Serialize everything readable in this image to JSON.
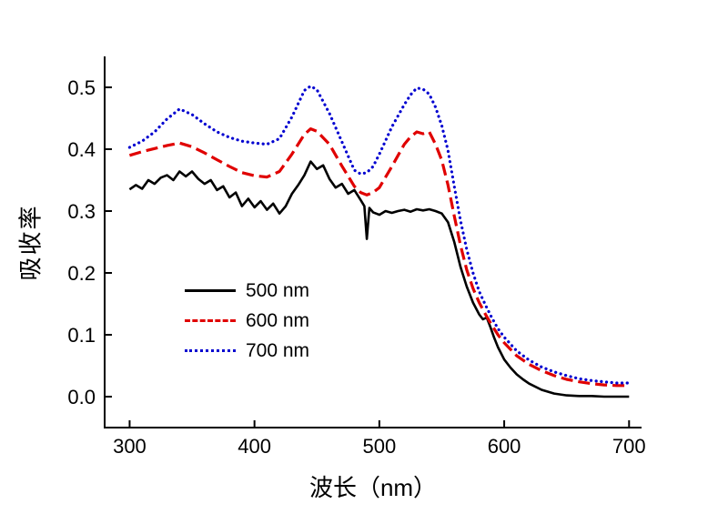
{
  "chart_data": {
    "type": "line",
    "title": "",
    "xlabel": "波长（nm）",
    "ylabel": "吸收率",
    "xlim": [
      280,
      710
    ],
    "ylim": [
      -0.05,
      0.55
    ],
    "grid": false,
    "legend_position": "inside lower-left",
    "axis_color": "#000000",
    "xticks": [
      {
        "value": 300,
        "label": "300"
      },
      {
        "value": 400,
        "label": "400"
      },
      {
        "value": 500,
        "label": "500"
      },
      {
        "value": 600,
        "label": "600"
      },
      {
        "value": 700,
        "label": "700"
      }
    ],
    "yticks": [
      {
        "value": 0.0,
        "label": "0.0"
      },
      {
        "value": 0.1,
        "label": "0.1"
      },
      {
        "value": 0.2,
        "label": "0.2"
      },
      {
        "value": 0.3,
        "label": "0.3"
      },
      {
        "value": 0.4,
        "label": "0.4"
      },
      {
        "value": 0.5,
        "label": "0.5"
      }
    ],
    "series": [
      {
        "name": "500 nm",
        "color": "#000000",
        "style": "solid",
        "x": [
          300,
          305,
          310,
          315,
          320,
          325,
          330,
          335,
          340,
          345,
          350,
          355,
          360,
          365,
          370,
          375,
          380,
          385,
          390,
          395,
          400,
          405,
          410,
          415,
          420,
          425,
          430,
          435,
          440,
          445,
          450,
          455,
          460,
          465,
          470,
          475,
          480,
          485,
          488,
          490,
          492,
          495,
          500,
          505,
          510,
          515,
          520,
          525,
          530,
          535,
          540,
          545,
          550,
          555,
          560,
          565,
          570,
          575,
          580,
          583,
          586,
          589,
          592,
          595,
          600,
          605,
          610,
          615,
          620,
          630,
          640,
          650,
          660,
          670,
          680,
          690,
          700
        ],
        "y": [
          0.335,
          0.342,
          0.336,
          0.35,
          0.344,
          0.354,
          0.358,
          0.35,
          0.364,
          0.356,
          0.364,
          0.352,
          0.344,
          0.35,
          0.334,
          0.34,
          0.322,
          0.33,
          0.308,
          0.32,
          0.306,
          0.316,
          0.302,
          0.312,
          0.296,
          0.308,
          0.328,
          0.342,
          0.358,
          0.38,
          0.368,
          0.374,
          0.352,
          0.338,
          0.344,
          0.328,
          0.334,
          0.318,
          0.308,
          0.255,
          0.305,
          0.298,
          0.294,
          0.3,
          0.297,
          0.3,
          0.302,
          0.299,
          0.303,
          0.301,
          0.303,
          0.3,
          0.296,
          0.282,
          0.25,
          0.21,
          0.178,
          0.152,
          0.133,
          0.125,
          0.128,
          0.112,
          0.095,
          0.08,
          0.06,
          0.047,
          0.036,
          0.028,
          0.021,
          0.011,
          0.005,
          0.002,
          0.001,
          0.001,
          0.0,
          0.0,
          0.0
        ]
      },
      {
        "name": "600 nm",
        "color": "#e00000",
        "style": "dashed",
        "x": [
          300,
          310,
          320,
          330,
          340,
          350,
          360,
          370,
          380,
          390,
          400,
          410,
          420,
          430,
          440,
          445,
          450,
          460,
          470,
          480,
          485,
          490,
          495,
          500,
          510,
          520,
          525,
          530,
          535,
          540,
          545,
          550,
          555,
          560,
          565,
          570,
          575,
          580,
          585,
          590,
          595,
          600,
          610,
          620,
          630,
          640,
          650,
          660,
          670,
          680,
          690,
          700
        ],
        "y": [
          0.39,
          0.396,
          0.401,
          0.406,
          0.41,
          0.404,
          0.394,
          0.383,
          0.372,
          0.362,
          0.357,
          0.355,
          0.364,
          0.392,
          0.424,
          0.433,
          0.429,
          0.408,
          0.373,
          0.34,
          0.33,
          0.326,
          0.33,
          0.338,
          0.372,
          0.408,
          0.42,
          0.428,
          0.425,
          0.428,
          0.408,
          0.382,
          0.342,
          0.292,
          0.245,
          0.205,
          0.175,
          0.152,
          0.133,
          0.116,
          0.1,
          0.087,
          0.066,
          0.052,
          0.042,
          0.034,
          0.028,
          0.024,
          0.021,
          0.019,
          0.018,
          0.018
        ]
      },
      {
        "name": "700 nm",
        "color": "#0000d0",
        "style": "dotted",
        "x": [
          300,
          310,
          320,
          330,
          340,
          350,
          360,
          370,
          380,
          390,
          400,
          410,
          420,
          430,
          440,
          445,
          450,
          460,
          470,
          480,
          485,
          490,
          495,
          500,
          510,
          520,
          525,
          530,
          535,
          540,
          545,
          550,
          555,
          560,
          565,
          570,
          575,
          580,
          585,
          590,
          595,
          600,
          610,
          620,
          630,
          640,
          650,
          660,
          670,
          680,
          690,
          700
        ],
        "y": [
          0.403,
          0.413,
          0.428,
          0.449,
          0.465,
          0.456,
          0.441,
          0.428,
          0.419,
          0.413,
          0.41,
          0.408,
          0.417,
          0.452,
          0.495,
          0.502,
          0.496,
          0.458,
          0.412,
          0.366,
          0.36,
          0.362,
          0.372,
          0.392,
          0.436,
          0.472,
          0.488,
          0.499,
          0.497,
          0.489,
          0.468,
          0.438,
          0.398,
          0.34,
          0.285,
          0.238,
          0.2,
          0.17,
          0.148,
          0.128,
          0.11,
          0.096,
          0.074,
          0.059,
          0.048,
          0.04,
          0.034,
          0.029,
          0.026,
          0.024,
          0.022,
          0.022
        ]
      }
    ]
  }
}
